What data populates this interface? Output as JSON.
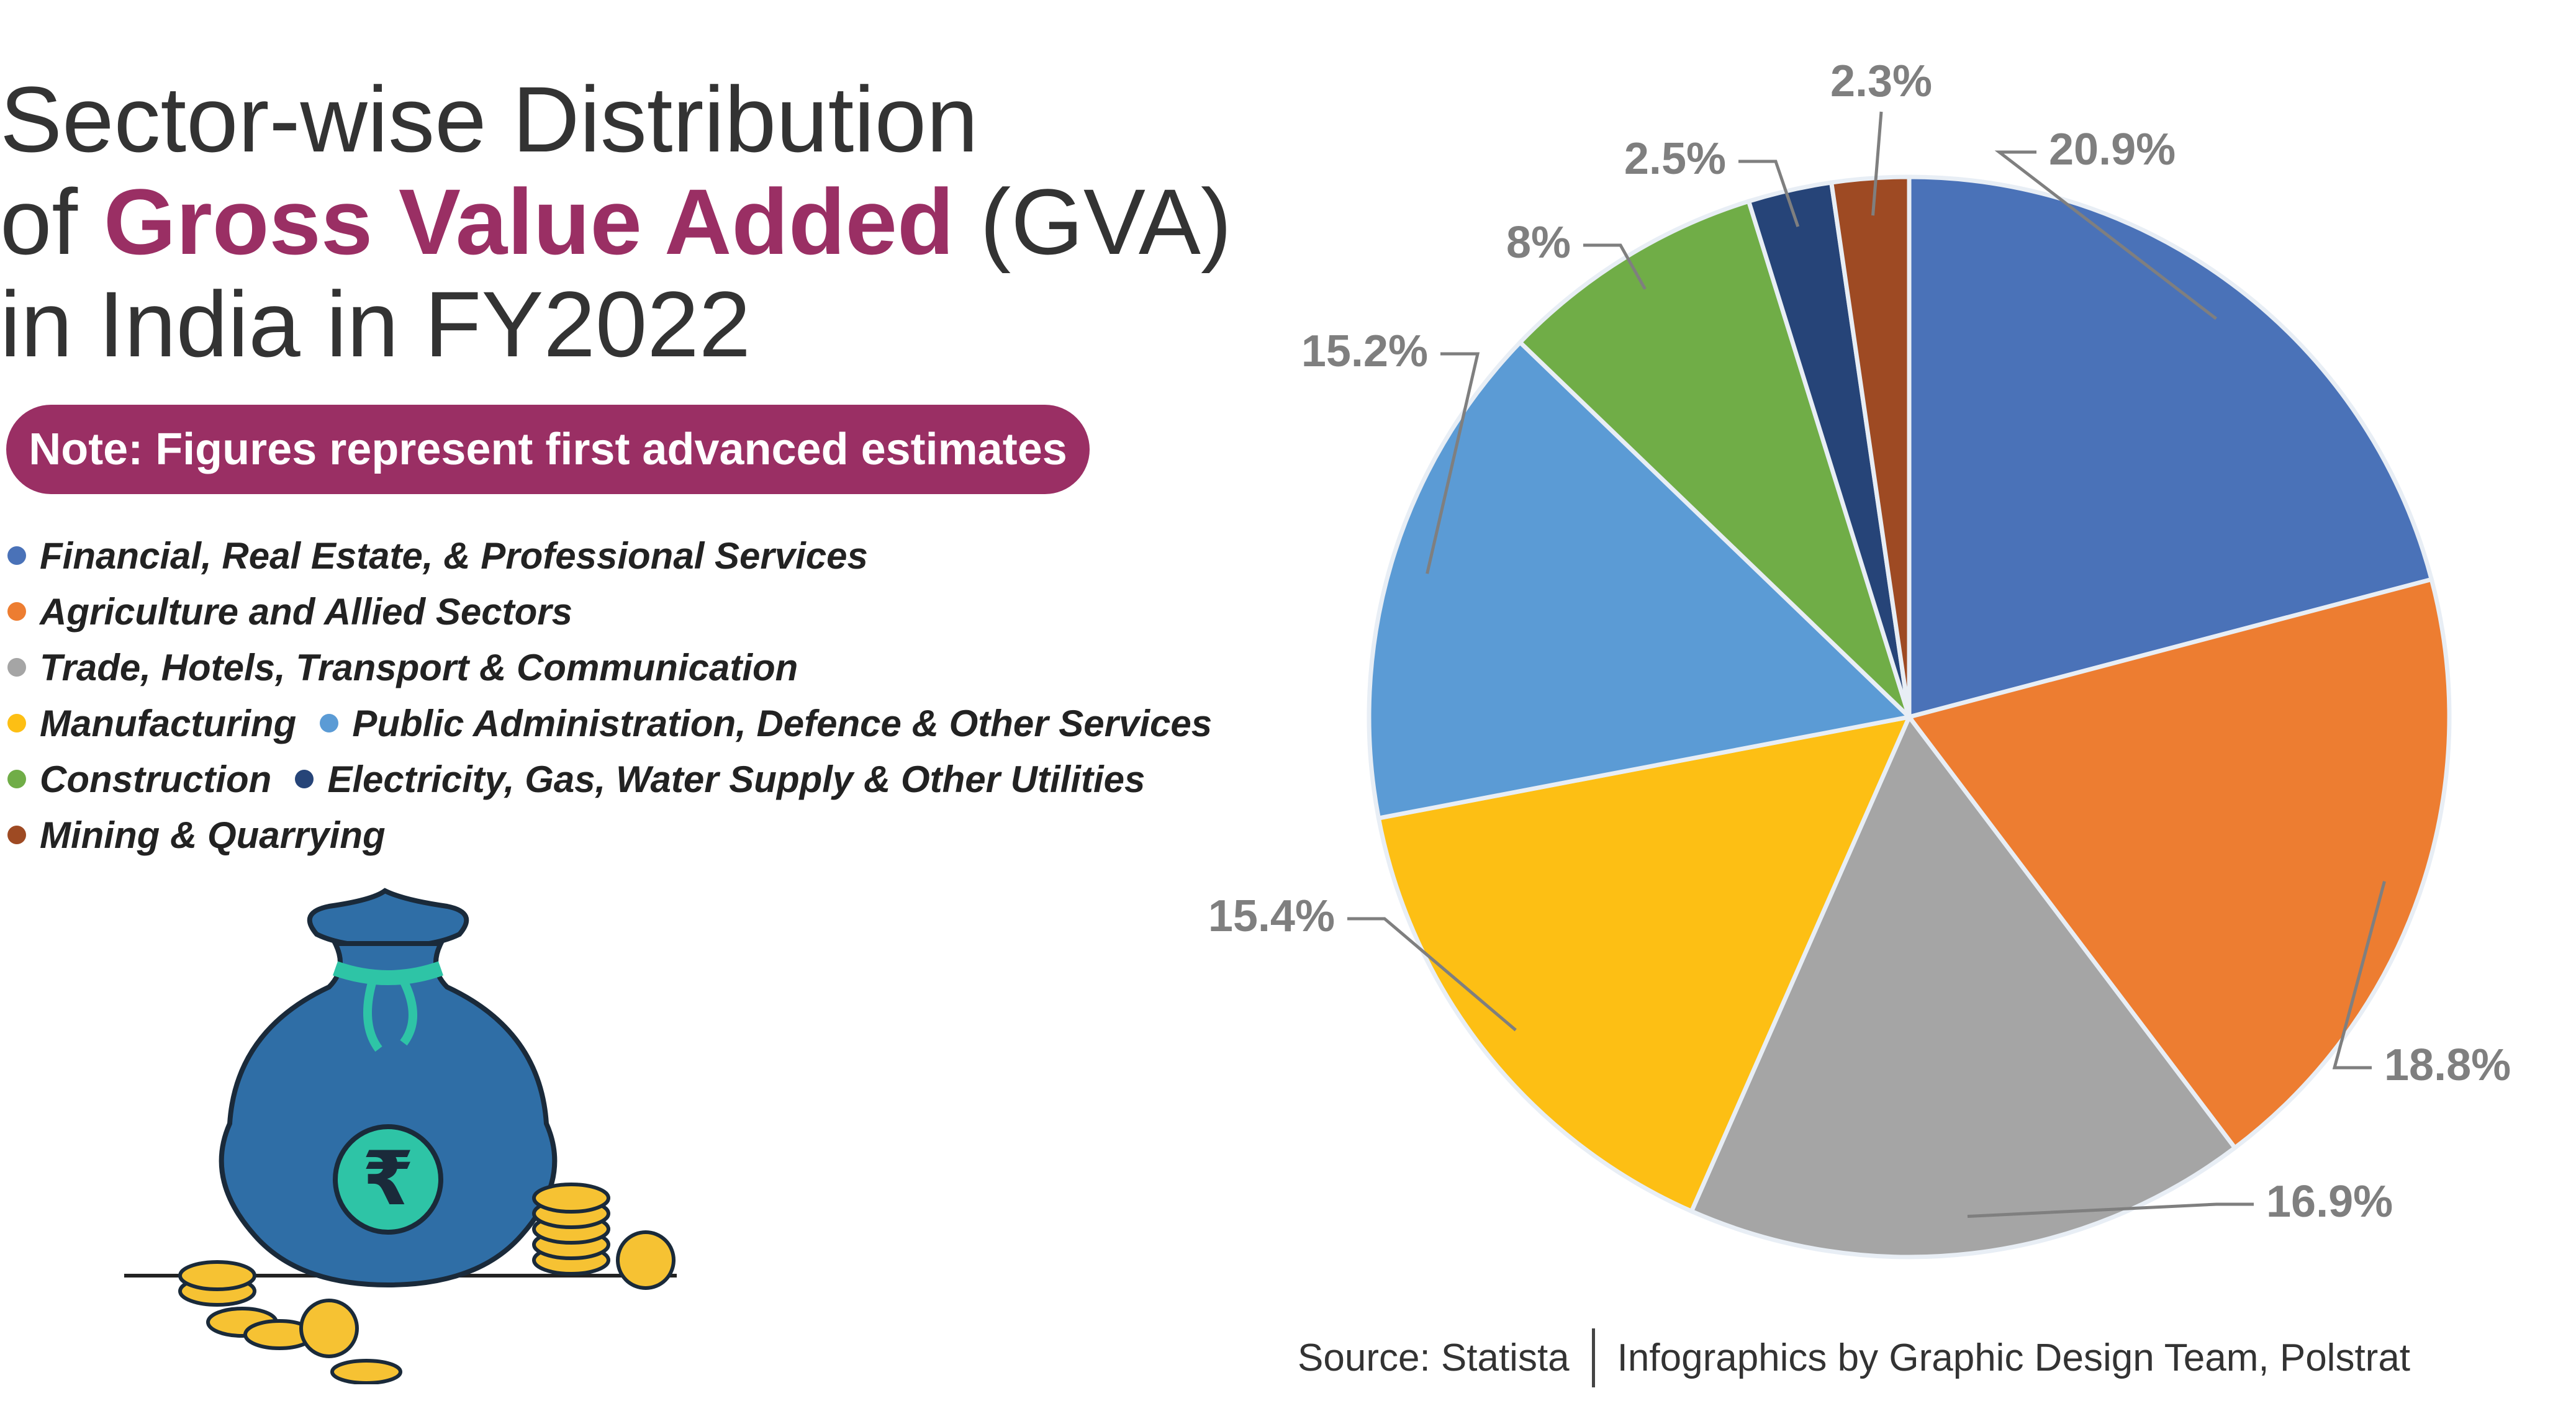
{
  "title": {
    "line1": "Sector-wise Distribution",
    "line2_pre": "of ",
    "line2_highlight": "Gross Value Added",
    "line2_post": " (GVA)",
    "line3": "in India in FY2022"
  },
  "note": "Note: Figures represent first advanced estimates",
  "footer": {
    "source": "Source: Statista",
    "credit": "Infographics by Graphic Design Team, Polstrat"
  },
  "illustration": {
    "icon": "money-bag-icon",
    "symbol": "₹"
  },
  "colors": {
    "accent": "#9a2f64",
    "label": "#7f7f7f",
    "financial": "#4a72b8",
    "agriculture": "#ed7d31",
    "trade": "#a5a5a5",
    "manufacturing": "#fdbf14",
    "public_admin": "#5b9bd5",
    "construction": "#70ad47",
    "electricity": "#264478",
    "mining": "#9e4a23"
  },
  "chart_data": {
    "type": "pie",
    "title": "Sector-wise Distribution of Gross Value Added (GVA) in India in FY2022",
    "legend_position": "left",
    "slices": [
      {
        "name": "Financial, Real Estate, & Professional Services",
        "value": 20.9,
        "label": "20.9%",
        "color": "#4a72b8"
      },
      {
        "name": "Agriculture and Allied Sectors",
        "value": 18.8,
        "label": "18.8%",
        "color": "#ed7d31"
      },
      {
        "name": "Trade, Hotels, Transport & Communication",
        "value": 16.9,
        "label": "16.9%",
        "color": "#a5a5a5"
      },
      {
        "name": "Manufacturing",
        "value": 15.4,
        "label": "15.4%",
        "color": "#fdbf14"
      },
      {
        "name": "Public Administration, Defence & Other Services",
        "value": 15.2,
        "label": "15.2%",
        "color": "#5b9bd5"
      },
      {
        "name": "Construction",
        "value": 8,
        "label": "8%",
        "color": "#70ad47"
      },
      {
        "name": "Electricity, Gas, Water Supply & Other Utilities",
        "value": 2.5,
        "label": "2.5%",
        "color": "#264478"
      },
      {
        "name": "Mining & Quarrying",
        "value": 2.3,
        "label": "2.3%",
        "color": "#9e4a23"
      }
    ]
  }
}
